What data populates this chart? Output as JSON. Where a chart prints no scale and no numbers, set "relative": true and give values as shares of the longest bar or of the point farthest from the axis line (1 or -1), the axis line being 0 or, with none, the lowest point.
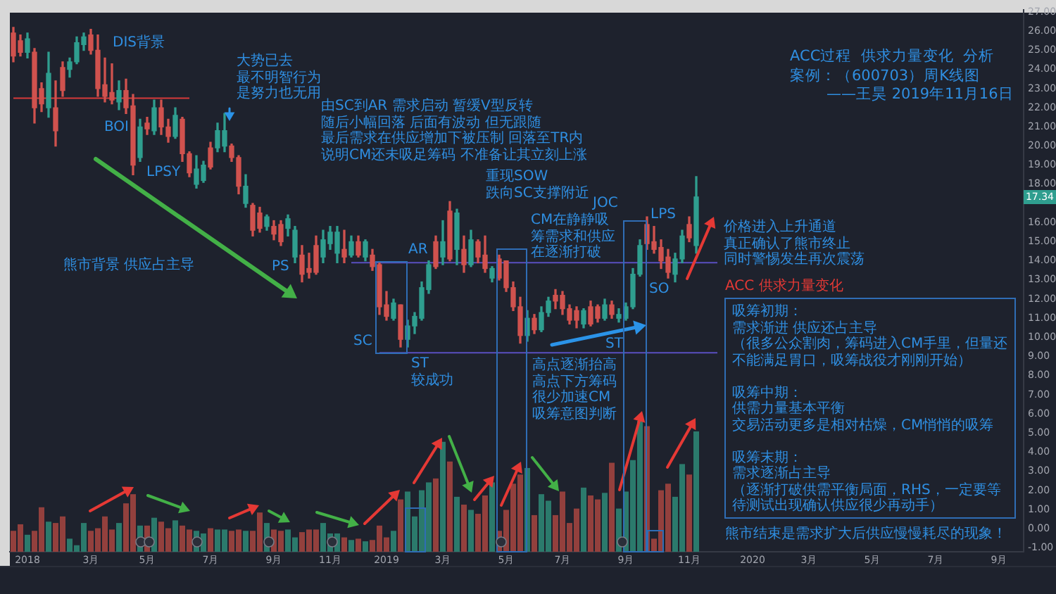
{
  "chart_data": [
    {
      "type": "candlestick",
      "title": "ACC过程  供求力量变化  分析",
      "subtitle": "案例：（600703）周K线图\n——王昊 2019年11月16日",
      "tick_labels": "y",
      "categories": [
        null,
        null,
        null,
        null,
        null,
        null,
        null,
        null,
        null,
        null,
        null,
        null,
        null,
        null,
        null,
        null,
        null,
        null,
        null,
        null,
        null,
        null,
        null,
        null,
        null,
        null,
        null,
        null,
        null,
        null,
        null,
        null,
        null,
        null,
        null,
        null,
        null,
        null,
        null,
        null,
        null,
        null,
        null,
        null,
        null,
        null,
        null,
        null,
        null,
        null,
        null,
        null,
        null,
        null,
        null,
        null,
        null,
        null,
        null,
        null,
        null,
        null,
        null,
        null,
        null,
        null,
        null,
        null,
        null,
        null,
        null,
        null,
        null,
        null,
        null,
        null,
        null,
        null,
        null,
        null,
        null,
        null,
        null,
        null,
        null,
        null,
        null,
        null,
        null,
        null,
        null,
        null,
        null,
        null,
        null,
        null,
        null,
        null,
        null,
        null,
        null,
        null,
        null,
        null,
        null,
        null,
        null,
        null,
        null,
        null,
        null,
        null,
        null,
        null,
        null,
        null,
        null,
        null,
        null,
        null,
        null,
        null,
        null,
        null,
        null,
        null,
        null,
        null,
        null,
        null,
        null,
        null,
        null,
        null,
        null,
        null,
        null,
        null,
        null,
        null,
        null,
        null,
        null,
        null
      ],
      "ohlc": [
        [
          25.9,
          26.2,
          24.4,
          24.7
        ],
        [
          25.5,
          25.8,
          24.7,
          24.9
        ],
        [
          24.9,
          25.9,
          24.6,
          25.6
        ],
        [
          24.9,
          25.1,
          21.2,
          22.0
        ],
        [
          23.0,
          23.3,
          21.8,
          22.2
        ],
        [
          22.0,
          24.9,
          21.5,
          23.8
        ],
        [
          22.0,
          23.4,
          20.0,
          20.8
        ],
        [
          24.1,
          24.4,
          22.6,
          22.9
        ],
        [
          24.0,
          24.6,
          23.6,
          24.4
        ],
        [
          24.4,
          25.7,
          24.3,
          25.4
        ],
        [
          25.3,
          25.9,
          25.0,
          25.7
        ],
        [
          25.8,
          26.1,
          24.8,
          25.0
        ],
        [
          25.0,
          25.8,
          22.6,
          23.0
        ],
        [
          23.2,
          24.6,
          22.3,
          22.6
        ],
        [
          22.8,
          24.3,
          22.2,
          22.4
        ],
        [
          22.3,
          23.4,
          21.9,
          22.9
        ],
        [
          22.9,
          23.5,
          21.7,
          22.0
        ],
        [
          22.1,
          22.7,
          18.5,
          19.0
        ],
        [
          19.4,
          21.4,
          19.2,
          21.0
        ],
        [
          21.2,
          21.5,
          20.6,
          20.9
        ],
        [
          20.8,
          22.4,
          20.6,
          22.0
        ],
        [
          22.0,
          22.4,
          20.6,
          21.0
        ],
        [
          21.0,
          21.4,
          20.2,
          20.5
        ],
        [
          20.5,
          22.0,
          20.4,
          21.6
        ],
        [
          21.4,
          21.5,
          19.2,
          19.6
        ],
        [
          19.6,
          19.7,
          18.4,
          18.6
        ],
        [
          18.0,
          19.5,
          17.8,
          18.8
        ],
        [
          18.2,
          19.2,
          18.1,
          19.0
        ],
        [
          19.9,
          20.2,
          18.8,
          18.9
        ],
        [
          19.9,
          21.2,
          19.7,
          20.8
        ],
        [
          20.0,
          21.7,
          19.7,
          20.8
        ],
        [
          20.0,
          20.1,
          19.2,
          19.4
        ],
        [
          19.4,
          19.5,
          17.5,
          17.9
        ],
        [
          17.0,
          18.5,
          16.8,
          17.9
        ],
        [
          16.9,
          17.0,
          15.3,
          15.6
        ],
        [
          16.5,
          16.8,
          15.5,
          15.7
        ],
        [
          15.8,
          16.4,
          15.6,
          16.3
        ],
        [
          15.8,
          16.1,
          15.1,
          15.4
        ],
        [
          15.9,
          16.1,
          14.8,
          15.0
        ],
        [
          15.7,
          16.4,
          15.3,
          16.2
        ],
        [
          14.2,
          15.8,
          13.9,
          15.6
        ],
        [
          14.3,
          14.8,
          12.9,
          13.3
        ],
        [
          13.6,
          14.4,
          13.1,
          13.4
        ],
        [
          14.8,
          15.3,
          13.3,
          13.4
        ],
        [
          14.2,
          15.6,
          13.9,
          15.1
        ],
        [
          14.9,
          15.8,
          14.6,
          15.5
        ],
        [
          14.4,
          15.8,
          13.9,
          15.5
        ],
        [
          14.6,
          15.6,
          13.9,
          14.2
        ],
        [
          14.3,
          15.3,
          14.2,
          15.0
        ],
        [
          15.0,
          15.3,
          14.2,
          14.3
        ],
        [
          14.2,
          15.1,
          14.0,
          15.0
        ],
        [
          14.3,
          14.6,
          13.5,
          13.7
        ],
        [
          13.8,
          13.9,
          11.2,
          11.6
        ],
        [
          11.7,
          12.4,
          10.9,
          11.1
        ],
        [
          11.0,
          12.0,
          10.9,
          11.8
        ],
        [
          11.7,
          11.7,
          9.5,
          9.9
        ],
        [
          9.9,
          10.9,
          9.5,
          10.6
        ],
        [
          10.6,
          11.3,
          10.2,
          11.1
        ],
        [
          11.0,
          12.9,
          10.9,
          12.6
        ],
        [
          12.5,
          14.0,
          12.3,
          13.8
        ],
        [
          15.0,
          15.3,
          13.6,
          13.7
        ],
        [
          14.2,
          16.1,
          13.8,
          15.0
        ],
        [
          16.6,
          17.1,
          14.0,
          14.1
        ],
        [
          14.6,
          16.7,
          13.8,
          16.5
        ],
        [
          14.6,
          15.3,
          13.4,
          13.8
        ],
        [
          13.8,
          15.6,
          13.7,
          15.1
        ],
        [
          15.0,
          15.1,
          13.9,
          14.2
        ],
        [
          14.3,
          15.3,
          13.4,
          13.6
        ],
        [
          13.1,
          13.7,
          12.9,
          13.6
        ],
        [
          14.1,
          14.3,
          13.0,
          13.1
        ],
        [
          14.0,
          14.0,
          12.4,
          12.6
        ],
        [
          12.6,
          12.9,
          11.4,
          11.6
        ],
        [
          11.6,
          12.1,
          9.7,
          10.1
        ],
        [
          10.1,
          11.4,
          9.8,
          11.0
        ],
        [
          11.0,
          11.2,
          10.2,
          10.4
        ],
        [
          10.4,
          11.6,
          10.3,
          11.3
        ],
        [
          11.3,
          12.1,
          11.1,
          11.9
        ],
        [
          12.2,
          12.5,
          11.5,
          11.9
        ],
        [
          12.2,
          12.4,
          11.2,
          11.5
        ],
        [
          11.5,
          11.7,
          10.7,
          10.9
        ],
        [
          11.4,
          11.6,
          10.5,
          10.9
        ],
        [
          10.7,
          11.5,
          10.5,
          11.4
        ],
        [
          11.6,
          11.9,
          10.6,
          10.7
        ],
        [
          11.6,
          11.7,
          10.8,
          11.0
        ],
        [
          11.0,
          12.0,
          10.9,
          11.7
        ],
        [
          11.7,
          11.9,
          11.0,
          11.2
        ],
        [
          11.0,
          11.5,
          10.8,
          11.2
        ],
        [
          11.0,
          11.8,
          10.9,
          11.6
        ],
        [
          11.6,
          13.6,
          11.5,
          13.3
        ],
        [
          13.3,
          15.1,
          13.2,
          14.8
        ],
        [
          15.9,
          16.3,
          14.6,
          14.9
        ],
        [
          15.0,
          15.8,
          14.4,
          14.6
        ],
        [
          14.7,
          15.1,
          13.6,
          14.0
        ],
        [
          14.2,
          14.6,
          13.1,
          13.4
        ],
        [
          13.3,
          14.4,
          12.9,
          14.1
        ],
        [
          14.1,
          15.6,
          13.9,
          15.3
        ],
        [
          15.9,
          16.3,
          15.0,
          15.2
        ],
        [
          14.8,
          18.4,
          14.4,
          17.34
        ],
        null,
        null,
        null,
        null,
        null,
        null,
        null,
        null,
        null,
        null,
        null,
        null,
        null,
        null,
        null,
        null,
        null,
        null,
        null,
        null,
        null,
        null,
        null,
        null,
        null,
        null,
        null,
        null,
        null,
        null,
        null,
        null,
        null,
        null,
        null,
        null,
        null,
        null,
        null,
        null,
        null,
        null,
        null,
        null,
        null,
        null
      ],
      "colors": [
        "#d0524e",
        "#d0524e",
        "#2f9e8f",
        "#d0524e",
        "#d0524e",
        "#2f9e8f",
        "#d0524e",
        "#d0524e",
        "#2f9e8f",
        "#2f9e8f",
        "#2f9e8f",
        "#d0524e",
        "#d0524e",
        "#d0524e",
        "#d0524e",
        "#2f9e8f",
        "#d0524e",
        "#d0524e",
        "#2f9e8f",
        "#d0524e",
        "#2f9e8f",
        "#d0524e",
        "#d0524e",
        "#2f9e8f",
        "#d0524e",
        "#d0524e",
        "#2f9e8f",
        "#2f9e8f",
        "#d0524e",
        "#2f9e8f",
        "#2f9e8f",
        "#d0524e",
        "#d0524e",
        "#2f9e8f",
        "#d0524e",
        "#d0524e",
        "#2f9e8f",
        "#d0524e",
        "#d0524e",
        "#2f9e8f",
        "#2f9e8f",
        "#d0524e",
        "#d0524e",
        "#d0524e",
        "#2f9e8f",
        "#2f9e8f",
        "#2f9e8f",
        "#d0524e",
        "#2f9e8f",
        "#d0524e",
        "#2f9e8f",
        "#d0524e",
        "#d0524e",
        "#d0524e",
        "#2f9e8f",
        "#d0524e",
        "#2f9e8f",
        "#2f9e8f",
        "#2f9e8f",
        "#2f9e8f",
        "#d0524e",
        "#2f9e8f",
        "#d0524e",
        "#2f9e8f",
        "#d0524e",
        "#2f9e8f",
        "#d0524e",
        "#d0524e",
        "#2f9e8f",
        "#d0524e",
        "#d0524e",
        "#d0524e",
        "#d0524e",
        "#2f9e8f",
        "#d0524e",
        "#2f9e8f",
        "#2f9e8f",
        "#d0524e",
        "#d0524e",
        "#d0524e",
        "#d0524e",
        "#2f9e8f",
        "#d0524e",
        "#d0524e",
        "#2f9e8f",
        "#d0524e",
        "#2f9e8f",
        "#2f9e8f",
        "#2f9e8f",
        "#2f9e8f",
        "#d0524e",
        "#d0524e",
        "#d0524e",
        "#d0524e",
        "#2f9e8f",
        "#2f9e8f",
        "#d0524e",
        "#2f9e8f",
        null,
        null,
        null,
        null,
        null,
        null,
        null,
        null,
        null,
        null,
        null,
        null,
        null,
        null,
        null,
        null,
        null,
        null,
        null,
        null,
        null,
        null,
        null,
        null,
        null,
        null,
        null,
        null,
        null,
        null,
        null,
        null,
        null,
        null,
        null,
        null,
        null,
        null,
        null,
        null,
        null,
        null,
        null,
        null,
        null,
        null
      ],
      "series": [
        {
          "type": "line",
          "color": "#d63a3a",
          "values": [
            22.5,
            22.5,
            22.5,
            22.5,
            22.5,
            22.5,
            22.5,
            22.5,
            22.5,
            22.5,
            22.5,
            22.5,
            22.5,
            22.5,
            22.5,
            22.5,
            22.5,
            22.5,
            22.5,
            22.5,
            22.5,
            22.5,
            22.5,
            22.5,
            22.5,
            22.5,
            null,
            null,
            null,
            null,
            null,
            null,
            null,
            null,
            null,
            null,
            null,
            null,
            null,
            null,
            null,
            null,
            null,
            null,
            null,
            null,
            null,
            null,
            null,
            null,
            null,
            null,
            null,
            null,
            null,
            null,
            null,
            null,
            null,
            null,
            null,
            null,
            null,
            null,
            null,
            null,
            null,
            null,
            null,
            null,
            null,
            null,
            null,
            null,
            null,
            null,
            null,
            null,
            null,
            null,
            null,
            null,
            null,
            null,
            null,
            null,
            null,
            null,
            null,
            null,
            null,
            null,
            null,
            null,
            null,
            null,
            null,
            null,
            null,
            null,
            null,
            null,
            null,
            null,
            null,
            null,
            null,
            null,
            null,
            null,
            null,
            null,
            null,
            null,
            null,
            null,
            null,
            null,
            null,
            null,
            null,
            null,
            null,
            null,
            null,
            null,
            null,
            null,
            null,
            null,
            null,
            null,
            null,
            null,
            null,
            null,
            null,
            null,
            null,
            null,
            null,
            null,
            null,
            null
          ]
        },
        {
          "type": "line",
          "color": "#5a4fc0",
          "values": [
            null,
            null,
            null,
            null,
            null,
            null,
            null,
            null,
            null,
            null,
            null,
            null,
            null,
            null,
            null,
            null,
            null,
            null,
            null,
            null,
            null,
            null,
            null,
            null,
            null,
            null,
            null,
            null,
            null,
            null,
            null,
            null,
            null,
            null,
            null,
            null,
            null,
            null,
            null,
            null,
            null,
            null,
            null,
            null,
            null,
            null,
            null,
            null,
            13.9,
            13.9,
            13.9,
            13.9,
            13.9,
            13.9,
            13.9,
            13.9,
            13.9,
            13.9,
            13.9,
            13.9,
            13.9,
            13.9,
            13.9,
            13.9,
            13.9,
            13.9,
            13.9,
            13.9,
            13.9,
            13.9,
            13.9,
            13.9,
            13.9,
            13.9,
            13.9,
            13.9,
            13.9,
            13.9,
            13.9,
            13.9,
            13.9,
            13.9,
            13.9,
            13.9,
            13.9,
            13.9,
            13.9,
            13.9,
            13.9,
            13.9,
            13.9,
            13.9,
            13.9,
            13.9,
            13.9,
            13.9,
            13.9,
            13.9,
            13.9,
            13.9,
            13.9,
            null,
            null,
            null,
            null,
            null,
            null,
            null,
            null,
            null,
            null,
            null,
            null,
            null,
            null,
            null,
            null,
            null,
            null,
            null,
            null,
            null,
            null,
            null,
            null,
            null,
            null,
            null,
            null,
            null,
            null,
            null,
            null,
            null,
            null,
            null,
            null,
            null,
            null,
            null,
            null,
            null,
            null,
            null
          ]
        },
        {
          "type": "line",
          "color": "#5a4fc0",
          "values": [
            null,
            null,
            null,
            null,
            null,
            null,
            null,
            null,
            null,
            null,
            null,
            null,
            null,
            null,
            null,
            null,
            null,
            null,
            null,
            null,
            null,
            null,
            null,
            null,
            null,
            null,
            null,
            null,
            null,
            null,
            null,
            null,
            null,
            null,
            null,
            null,
            null,
            null,
            null,
            null,
            null,
            null,
            null,
            null,
            null,
            null,
            null,
            null,
            null,
            null,
            null,
            null,
            9.2,
            9.2,
            9.2,
            9.2,
            9.2,
            9.2,
            9.2,
            9.2,
            9.2,
            9.2,
            9.2,
            9.2,
            9.2,
            9.2,
            9.2,
            9.2,
            9.2,
            9.2,
            9.2,
            9.2,
            9.2,
            9.2,
            9.2,
            9.2,
            9.2,
            9.2,
            9.2,
            9.2,
            9.2,
            9.2,
            9.2,
            9.2,
            9.2,
            9.2,
            9.2,
            9.2,
            9.2,
            9.2,
            9.2,
            9.2,
            9.2,
            9.2,
            9.2,
            9.2,
            9.2,
            9.2,
            9.2,
            9.2,
            9.2,
            null,
            null,
            null,
            null,
            null,
            null,
            null,
            null,
            null,
            null,
            null,
            null,
            null,
            null,
            null,
            null,
            null,
            null,
            null,
            null,
            null,
            null,
            null,
            null,
            null,
            null,
            null,
            null,
            null,
            null,
            null,
            null,
            null,
            null,
            null,
            null,
            null,
            null,
            null,
            null,
            null,
            null,
            null
          ]
        }
      ],
      "ylim": [
        -1.2,
        27.1
      ],
      "yticks": [
        {
          "value": -1,
          "label": "-1.00"
        },
        {
          "value": 0,
          "label": "0.00"
        },
        {
          "value": 1,
          "label": "1.00"
        },
        {
          "value": 2,
          "label": "2.00"
        },
        {
          "value": 3,
          "label": "3.00"
        },
        {
          "value": 4,
          "label": "4.00"
        },
        {
          "value": 5,
          "label": "5.00"
        },
        {
          "value": 6,
          "label": "6.00"
        },
        {
          "value": 7,
          "label": "7.00"
        },
        {
          "value": 8,
          "label": "8.00"
        },
        {
          "value": 9,
          "label": "9.00"
        },
        {
          "value": 10,
          "label": "10.00"
        },
        {
          "value": 11,
          "label": "11.00"
        },
        {
          "value": 12,
          "label": "12.00"
        },
        {
          "value": 13,
          "label": "13.00"
        },
        {
          "value": 14,
          "label": "14.00"
        },
        {
          "value": 15,
          "label": "15.00"
        },
        {
          "value": 16,
          "label": "16.00"
        },
        {
          "value": 18,
          "label": "18.00"
        },
        {
          "value": 19,
          "label": "19.00"
        },
        {
          "value": 20,
          "label": "20.00"
        },
        {
          "value": 21,
          "label": "21.00"
        },
        {
          "value": 22,
          "label": "22.00"
        },
        {
          "value": 23,
          "label": "23.00"
        },
        {
          "value": 24,
          "label": "24.00"
        },
        {
          "value": 25,
          "label": "25.00"
        },
        {
          "value": 26,
          "label": "26.00"
        },
        {
          "value": 27,
          "label": "27.00"
        }
      ],
      "annotations": [
        "DIS背景",
        "BOI",
        "LPSY",
        "大势已去",
        "最不明智行为",
        "是努力也无用",
        "熊市背景 供应占主导",
        "PS",
        "SC",
        "AR",
        "ST",
        "较成功",
        "由SC到AR 需求启动 暂缓V型反转",
        "随后小幅回落 后面有波动 但无跟随",
        "最后需求在供应增加下被压制 回落至TR内",
        "说明CM还未吸足筹码 不准备让其立刻上涨",
        "重现SOW",
        "跌向SC支撑附近",
        "JOC",
        "CM在静静吸筹需求和供应在逐渐打破",
        "ST",
        "LPS",
        "SO",
        "高点逐渐抬高高点下方筹码很少加速CM吸筹意图判断",
        "价格进入上升通道",
        "真正确认了熊市终止",
        "同时警惕发生再次震荡",
        "ACC 供求力量变化",
        "吸筹初期：",
        "需求渐进 供应还占主导",
        "（很多公众割肉，筹码进入CM手里，但量还不能满足胃口，吸筹战役才刚刚开始）",
        "吸筹中期：",
        "供需力量基本平衡",
        "交易活动更多是相对枯燥，CM悄悄的吸筹",
        "吸筹末期：",
        "需求逐渐占主导",
        "（逐渐打破供需平衡局面，RHS，一定要等待测试出现确认供应很少再动手）",
        "熊市结束是需求扩大后供应慢慢耗尽的现象！",
        {
          "text": "17.34",
          "y": 17.34
        }
      ],
      "grid": false
    },
    {
      "type": "bar",
      "relative": true,
      "tick_labels": "x",
      "categories": [
        null,
        null,
        "2018",
        null,
        null,
        null,
        null,
        null,
        null,
        null,
        null,
        "3月",
        null,
        null,
        null,
        null,
        null,
        null,
        null,
        "5月",
        null,
        null,
        null,
        null,
        null,
        null,
        null,
        null,
        "7月",
        null,
        null,
        null,
        null,
        null,
        null,
        null,
        null,
        "9月",
        null,
        null,
        null,
        null,
        null,
        null,
        null,
        "11月",
        null,
        null,
        null,
        null,
        null,
        null,
        null,
        "2019",
        null,
        null,
        null,
        null,
        null,
        null,
        null,
        "3月",
        null,
        null,
        null,
        null,
        null,
        null,
        null,
        null,
        "5月",
        null,
        null,
        null,
        null,
        null,
        null,
        null,
        "7月",
        null,
        null,
        null,
        null,
        null,
        null,
        null,
        null,
        "9月",
        null,
        null,
        null,
        null,
        null,
        null,
        null,
        null,
        "11月",
        null,
        null,
        null,
        null,
        null,
        null,
        null,
        null,
        "2020",
        null,
        null,
        null,
        null,
        null,
        null,
        null,
        "3月",
        null,
        null,
        null,
        null,
        null,
        null,
        null,
        null,
        "5月",
        null,
        null,
        null,
        null,
        null,
        null,
        null,
        null,
        "7月",
        null,
        null,
        null,
        null,
        null,
        null,
        null,
        null,
        "9月",
        null,
        null,
        null
      ],
      "values": [
        0.16,
        0.21,
        0.13,
        0.16,
        0.34,
        0.23,
        0.22,
        0.27,
        0.1,
        0.05,
        0.22,
        0.16,
        0.18,
        0.27,
        0.17,
        0.22,
        0.37,
        0.44,
        0.2,
        0.2,
        0.26,
        0.23,
        0.18,
        0.24,
        0.2,
        0.17,
        0.16,
        0.14,
        0.18,
        0.17,
        0.17,
        0.16,
        0.17,
        0.16,
        0.16,
        0.3,
        0.22,
        0.17,
        0.16,
        0.17,
        0.11,
        0.15,
        0.17,
        0.17,
        0.22,
        0.14,
        0.14,
        0.11,
        0.09,
        0.1,
        0.08,
        0.09,
        0.2,
        0.11,
        0.16,
        0.4,
        0.46,
        0.27,
        0.47,
        0.53,
        0.56,
        0.84,
        0.69,
        0.42,
        0.36,
        0.32,
        0.29,
        0.43,
        0.53,
        0.16,
        0.32,
        0.52,
        0.59,
        0.64,
        0.28,
        0.44,
        0.39,
        0.28,
        0.46,
        0.22,
        0.33,
        0.49,
        0.43,
        0.4,
        0.45,
        0.68,
        0.33,
        0.46,
        0.7,
        1,
        0.96,
        0.1,
        0.47,
        0.52,
        0.42,
        0.67,
        0.59,
        0.92,
        null,
        null,
        null,
        null,
        null,
        null,
        null,
        null,
        null,
        null,
        null,
        null,
        null,
        null,
        null,
        null,
        null,
        null,
        null,
        null,
        null,
        null,
        null,
        null,
        null,
        null,
        null,
        null,
        null,
        null,
        null,
        null,
        null,
        null,
        null,
        null,
        null,
        null,
        null,
        null,
        null,
        null,
        null,
        null,
        null,
        null
      ],
      "colors": [
        "#93403d",
        "#93403d",
        "#2b7a6c",
        "#93403d",
        "#93403d",
        "#2b7a6c",
        "#93403d",
        "#93403d",
        "#2b7a6c",
        "#2b7a6c",
        "#2b7a6c",
        "#93403d",
        "#93403d",
        "#93403d",
        "#93403d",
        "#2b7a6c",
        "#93403d",
        "#93403d",
        "#2b7a6c",
        "#93403d",
        "#2b7a6c",
        "#93403d",
        "#93403d",
        "#2b7a6c",
        "#93403d",
        "#93403d",
        "#2b7a6c",
        "#2b7a6c",
        "#93403d",
        "#2b7a6c",
        "#2b7a6c",
        "#93403d",
        "#93403d",
        "#2b7a6c",
        "#93403d",
        "#93403d",
        "#2b7a6c",
        "#93403d",
        "#93403d",
        "#2b7a6c",
        "#2b7a6c",
        "#93403d",
        "#93403d",
        "#93403d",
        "#2b7a6c",
        "#2b7a6c",
        "#2b7a6c",
        "#93403d",
        "#2b7a6c",
        "#93403d",
        "#2b7a6c",
        "#93403d",
        "#93403d",
        "#93403d",
        "#2b7a6c",
        "#93403d",
        "#2b7a6c",
        "#2b7a6c",
        "#2b7a6c",
        "#2b7a6c",
        "#93403d",
        "#2b7a6c",
        "#93403d",
        "#2b7a6c",
        "#93403d",
        "#2b7a6c",
        "#93403d",
        "#93403d",
        "#2b7a6c",
        "#93403d",
        "#93403d",
        "#93403d",
        "#93403d",
        "#2b7a6c",
        "#93403d",
        "#2b7a6c",
        "#2b7a6c",
        "#93403d",
        "#93403d",
        "#93403d",
        "#93403d",
        "#2b7a6c",
        "#93403d",
        "#93403d",
        "#2b7a6c",
        "#93403d",
        "#2b7a6c",
        "#2b7a6c",
        "#2b7a6c",
        "#2b7a6c",
        "#93403d",
        "#93403d",
        "#93403d",
        "#93403d",
        "#2b7a6c",
        "#2b7a6c",
        "#93403d",
        "#2b7a6c",
        null,
        null,
        null,
        null,
        null,
        null,
        null,
        null,
        null,
        null,
        null,
        null,
        null,
        null,
        null,
        null,
        null,
        null,
        null,
        null,
        null,
        null,
        null,
        null,
        null,
        null,
        null,
        null,
        null,
        null,
        null,
        null,
        null,
        null,
        null,
        null,
        null,
        null,
        null,
        null,
        null,
        null,
        null,
        null,
        null,
        null
      ]
    }
  ]
}
